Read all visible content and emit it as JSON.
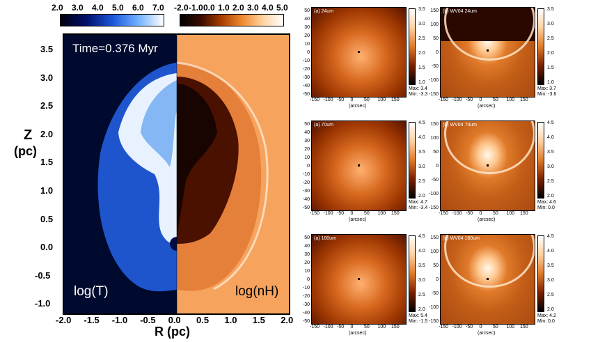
{
  "main": {
    "time_label": "Time=0.376 Myr",
    "left_label": "log(T)",
    "right_label": "log(nH)",
    "xlabel": "R (pc)",
    "ylabel_1": "Z",
    "ylabel_2": "(pc)",
    "x_ticks": [
      "-2.0",
      "-1.5",
      "-1.0",
      "-0.5",
      "0.0",
      "0.5",
      "1.0",
      "1.5",
      "2.0"
    ],
    "y_ticks": [
      "3.5",
      "3.0",
      "2.5",
      "2.0",
      "1.5",
      "1.0",
      "0.5",
      "0.0",
      "-0.5",
      "-1.0"
    ],
    "cbar_T_ticks": [
      "2.0",
      "3.0",
      "4.0",
      "5.0",
      "6.0",
      "7.0"
    ],
    "cbar_n_ticks": [
      "-2.0",
      "-1.0",
      "0.0",
      "1.0",
      "2.0",
      "3.0",
      "4.0",
      "5.0"
    ]
  },
  "panels": [
    {
      "title": "(a) 24um",
      "cb_ticks": [
        "3.5",
        "3.0",
        "2.5",
        "2.0",
        "1.5",
        "1.0"
      ],
      "max": "Max: 3.4",
      "min": "Min: -3.3",
      "y_ticks": [
        "50",
        "40",
        "30",
        "20",
        "10",
        "0",
        "-10",
        "-20",
        "-30",
        "-40",
        "-50"
      ]
    },
    {
      "title": "(b) WV04 24um",
      "cb_ticks": [
        "3.5",
        "3.0",
        "2.5",
        "2.0",
        "1.5",
        "1.0"
      ],
      "max": "Max: 3.7",
      "min": "Min: -3.6",
      "y_ticks": [
        "150",
        "100",
        "50",
        "0",
        "-50",
        "-100",
        "-150"
      ]
    },
    {
      "title": "(a) 70um",
      "cb_ticks": [
        "4.5",
        "4.0",
        "3.5",
        "3.0",
        "2.5",
        "2.0"
      ],
      "max": "Max: 4.7",
      "min": "Min: -3.4",
      "y_ticks": [
        "50",
        "40",
        "30",
        "20",
        "10",
        "0",
        "-10",
        "-20",
        "-30",
        "-40",
        "-50"
      ]
    },
    {
      "title": "(b) WV04 70um",
      "cb_ticks": [
        "4.5",
        "4.0",
        "3.5",
        "3.0",
        "2.5",
        "2.0"
      ],
      "max": "Max: 4.6",
      "min": "Min: 0.0",
      "y_ticks": [
        "150",
        "100",
        "50",
        "0",
        "-50",
        "-100",
        "-150"
      ]
    },
    {
      "title": "(a) 160um",
      "cb_ticks": [
        "4.5",
        "4.0",
        "3.5",
        "3.0",
        "2.5",
        "2.0"
      ],
      "max": "Max: 5.4",
      "min": "Min: -1.5",
      "y_ticks": [
        "50",
        "40",
        "30",
        "20",
        "10",
        "0",
        "-10",
        "-20",
        "-30",
        "-40",
        "-50"
      ]
    },
    {
      "title": "(b) WV04 160um",
      "cb_ticks": [
        "4.5",
        "4.0",
        "3.5",
        "3.0",
        "2.5",
        "2.0"
      ],
      "max": "Max: 4.2",
      "min": "Min: 0.0",
      "y_ticks": [
        "150",
        "100",
        "50",
        "0",
        "-50",
        "-100",
        "-150"
      ]
    }
  ],
  "small_x_ticks": [
    "-150",
    "-100",
    "-50",
    "0",
    "50",
    "100",
    "150"
  ],
  "small_xlabel": "(arcsec)"
}
